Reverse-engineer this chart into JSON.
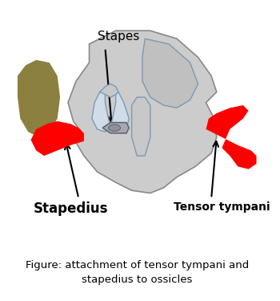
{
  "caption": "Figure: attachment of tensor tympani and\nstapedius to ossicles",
  "caption_fontsize": 9.5,
  "label_stapes": "Stapes",
  "label_stapedius": "Stapedius",
  "label_tensor": "Tensor tympani",
  "label_stapes_fontsize": 11,
  "label_stapedius_fontsize": 12,
  "label_tensor_fontsize": 10,
  "bg_color": "#ffffff",
  "ossicle_fill": "#cccccc",
  "ossicle_edge": "#888888",
  "ossicle_edge2": "#7a9ab5",
  "inner_bone_fill": "#b8b8b8",
  "stapes_footplate_fill": "#999999",
  "stapes_oval_fill": "#888888",
  "red_color": "#ff0000",
  "olive_color": "#8b8040",
  "arrow_color": "#000000"
}
